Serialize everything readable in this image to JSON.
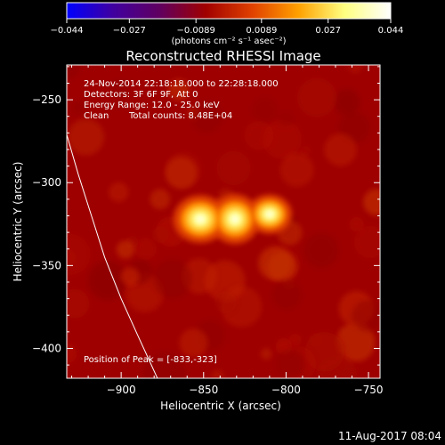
{
  "chart_data": {
    "type": "heatmap",
    "title": "Reconstructed RHESSI Image",
    "xlabel": "Heliocentric X (arcsec)",
    "ylabel": "Heliocentric Y (arcsec)",
    "xlim": [
      -933,
      -743
    ],
    "ylim": [
      -418,
      -229
    ],
    "x_ticks": [
      -900,
      -850,
      -800,
      -750
    ],
    "y_ticks": [
      -250,
      -300,
      -350,
      -400
    ],
    "colorbar": {
      "range": [
        -0.044,
        0.044
      ],
      "ticks": [
        -0.044,
        -0.027,
        -0.0089,
        0.0089,
        0.027,
        0.044
      ],
      "tick_labels": [
        "−0.044",
        "−0.027",
        "−0.0089",
        "0.0089",
        "0.027",
        "0.044"
      ],
      "unit_label": "(photons cm⁻² s⁻¹ asec⁻²)",
      "colors": [
        "#0000ff",
        "#4000a0",
        "#600060",
        "#a00000",
        "#e04000",
        "#ffa000",
        "#ffff80",
        "#ffffff"
      ]
    },
    "source_peak": {
      "x": -833,
      "y": -323
    },
    "sources": [
      {
        "x": -852,
        "y": -322,
        "sx": 9,
        "sy": 8,
        "amp": 0.9
      },
      {
        "x": -831,
        "y": -322,
        "sx": 8,
        "sy": 8,
        "amp": 1.0
      },
      {
        "x": -810,
        "y": -319,
        "sx": 8,
        "sy": 7,
        "amp": 0.75
      }
    ],
    "limb_curve": [
      [
        -933,
        -271
      ],
      [
        -926,
        -295
      ],
      [
        -918,
        -320
      ],
      [
        -910,
        -345
      ],
      [
        -900,
        -370
      ],
      [
        -890,
        -392
      ],
      [
        -878,
        -418
      ]
    ]
  },
  "annotations": {
    "time_range": "24-Nov-2014 22:18:18.000 to 22:28:18.000",
    "detectors": "Detectors: 3F 6F 9F, Att 0",
    "energy_range": "Energy Range: 12.0 - 25.0 keV",
    "algorithm": "Clean",
    "total_counts": "Total counts: 8.48E+04",
    "peak_position": "Position of Peak = [-833,-323]"
  },
  "footer": {
    "date": "11-Aug-2017 08:04"
  },
  "colors": {
    "background": "#000000",
    "foreground": "#ffffff",
    "image_base": "#a00000"
  }
}
